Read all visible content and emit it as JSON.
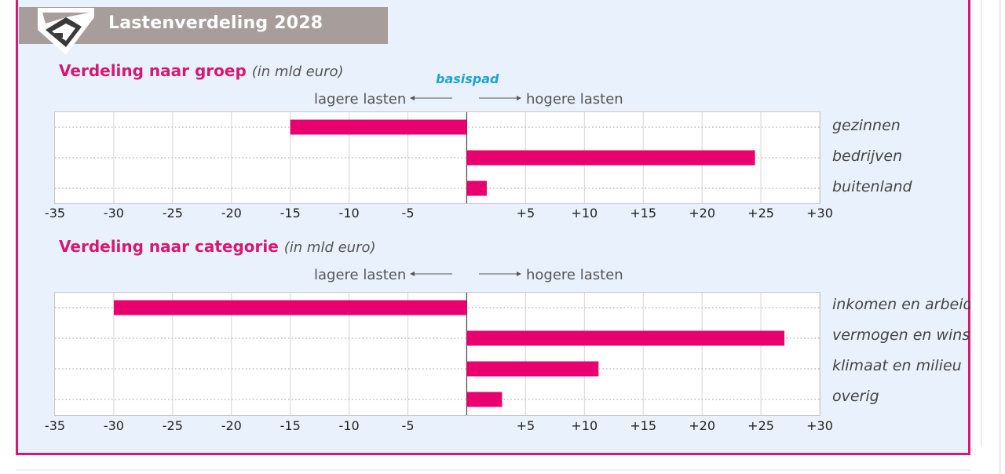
{
  "header": {
    "title": "Lastenverdeling 2028"
  },
  "basispad_label": "basispad",
  "colors": {
    "bar": "#e8006e",
    "accent": "#d81774",
    "header_bg": "#a79e9b",
    "panel_bg": "#e9f2fc",
    "basispad": "#1fa2d6"
  },
  "chart_data": [
    {
      "type": "bar",
      "orientation": "horizontal",
      "title": "Verdeling naar groep",
      "unit": "(in mld euro)",
      "left_label": "lagere lasten",
      "right_label": "hogere lasten",
      "categories": [
        "gezinnen",
        "bedrijven",
        "buitenland"
      ],
      "values": [
        -15,
        24.5,
        1.7
      ],
      "xlim": [
        -35,
        30
      ],
      "ticks": [
        -35,
        -30,
        -25,
        -20,
        -15,
        -10,
        -5,
        5,
        10,
        15,
        20,
        25,
        30
      ],
      "tick_labels": [
        "-35",
        "-30",
        "-25",
        "-20",
        "-15",
        "-10",
        "-5",
        "+5",
        "+10",
        "+15",
        "+20",
        "+25",
        "+30"
      ],
      "grid": true
    },
    {
      "type": "bar",
      "orientation": "horizontal",
      "title": "Verdeling naar categorie",
      "unit": "(in mld euro)",
      "left_label": "lagere lasten",
      "right_label": "hogere lasten",
      "categories": [
        "inkomen en arbeid",
        "vermogen en winst",
        "klimaat en milieu",
        "overig"
      ],
      "values": [
        -30,
        27,
        11.2,
        3
      ],
      "xlim": [
        -35,
        30
      ],
      "ticks": [
        -35,
        -30,
        -25,
        -20,
        -15,
        -10,
        -5,
        5,
        10,
        15,
        20,
        25,
        30
      ],
      "tick_labels": [
        "-35",
        "-30",
        "-25",
        "-20",
        "-15",
        "-10",
        "-5",
        "+5",
        "+10",
        "+15",
        "+20",
        "+25",
        "+30"
      ],
      "grid": true
    }
  ]
}
